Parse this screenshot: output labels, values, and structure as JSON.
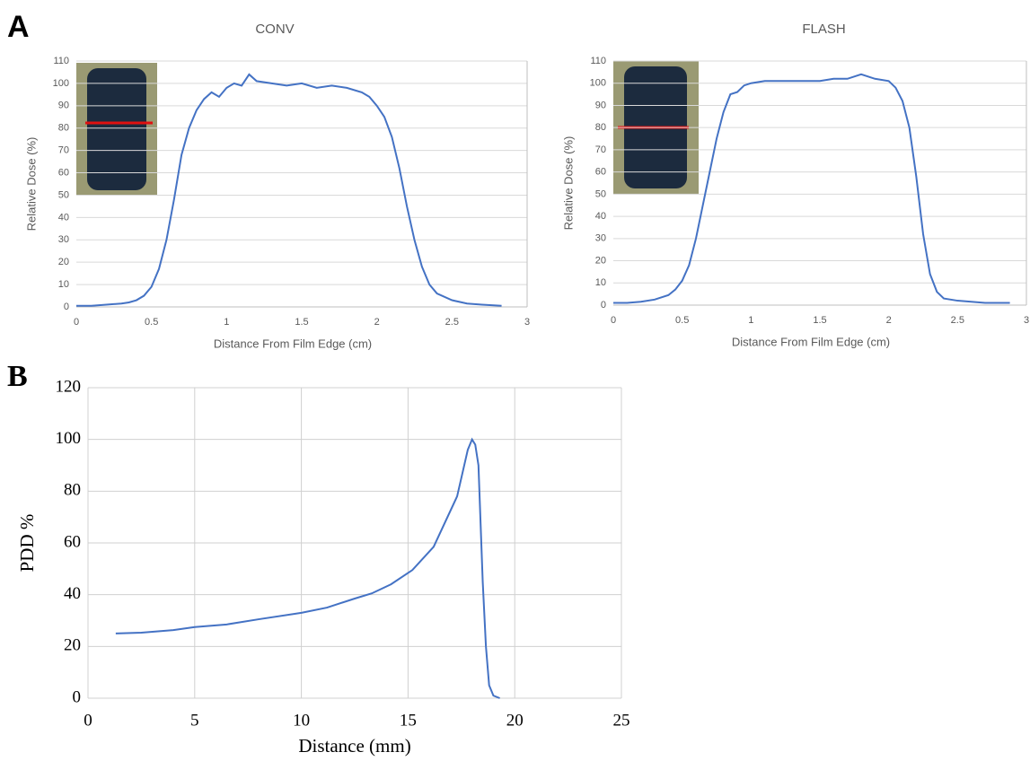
{
  "chart_data": [
    {
      "type": "line",
      "panel_label": "A",
      "title": "CONV",
      "x_label": "Distance From Film Edge (cm)",
      "y_label": "Relative Dose (%)",
      "x": [
        0,
        0.1,
        0.2,
        0.3,
        0.35,
        0.4,
        0.45,
        0.5,
        0.55,
        0.6,
        0.65,
        0.7,
        0.75,
        0.8,
        0.85,
        0.9,
        0.95,
        1.0,
        1.05,
        1.1,
        1.15,
        1.2,
        1.3,
        1.4,
        1.5,
        1.6,
        1.7,
        1.8,
        1.9,
        1.95,
        2.0,
        2.05,
        2.1,
        2.15,
        2.2,
        2.25,
        2.3,
        2.35,
        2.4,
        2.5,
        2.6,
        2.7,
        2.83
      ],
      "values": [
        0.5,
        0.5,
        1,
        1.5,
        2,
        3,
        5,
        9,
        17,
        30,
        48,
        68,
        80,
        88,
        93,
        96,
        94,
        98,
        100,
        99,
        104,
        101,
        100,
        99,
        100,
        98,
        99,
        98,
        96,
        94,
        90,
        85,
        76,
        62,
        45,
        30,
        18,
        10,
        6,
        3,
        1.5,
        1,
        0.5
      ],
      "color": "#4472c4",
      "xlim": [
        0,
        3
      ],
      "ylim": [
        0,
        110
      ],
      "xticks": [
        0,
        0.5,
        1,
        1.5,
        2,
        2.5,
        3
      ],
      "yticks": [
        0,
        10,
        20,
        30,
        40,
        50,
        60,
        70,
        80,
        90,
        100,
        110
      ],
      "grid": "horizontal"
    },
    {
      "type": "line",
      "title": "FLASH",
      "x_label": "Distance From Film Edge (cm)",
      "y_label": "Relative Dose (%)",
      "x": [
        0,
        0.1,
        0.2,
        0.3,
        0.4,
        0.45,
        0.5,
        0.55,
        0.6,
        0.65,
        0.7,
        0.75,
        0.8,
        0.85,
        0.9,
        0.95,
        1.0,
        1.1,
        1.2,
        1.3,
        1.4,
        1.5,
        1.6,
        1.7,
        1.8,
        1.9,
        2.0,
        2.05,
        2.1,
        2.15,
        2.2,
        2.25,
        2.3,
        2.35,
        2.4,
        2.5,
        2.6,
        2.7,
        2.88
      ],
      "values": [
        1,
        1,
        1.5,
        2.5,
        4.5,
        7,
        11,
        18,
        30,
        45,
        60,
        75,
        87,
        95,
        96,
        99,
        100,
        101,
        101,
        101,
        101,
        101,
        102,
        102,
        104,
        102,
        101,
        98,
        92,
        80,
        58,
        32,
        14,
        6,
        3,
        2,
        1.5,
        1,
        1
      ],
      "color": "#4472c4",
      "xlim": [
        0,
        3
      ],
      "ylim": [
        0,
        110
      ],
      "xticks": [
        0,
        0.5,
        1,
        1.5,
        2,
        2.5,
        3
      ],
      "yticks": [
        0,
        10,
        20,
        30,
        40,
        50,
        60,
        70,
        80,
        90,
        100,
        110
      ],
      "grid": "horizontal"
    },
    {
      "type": "line",
      "panel_label": "B",
      "x_label": "Distance (mm)",
      "y_label": "PDD %",
      "x": [
        1.3,
        2.5,
        4,
        5,
        6.5,
        8,
        10,
        11.2,
        12.5,
        13.3,
        14.2,
        15.2,
        16.2,
        17.3,
        17.8,
        18,
        18.15,
        18.3,
        18.5,
        18.65,
        18.8,
        19,
        19.3
      ],
      "values": [
        25,
        25.3,
        26.3,
        27.5,
        28.5,
        30.5,
        33,
        35,
        38.5,
        40.5,
        44,
        49.5,
        58.5,
        78,
        96,
        100,
        98,
        90,
        45,
        20,
        5,
        1,
        0
      ],
      "color": "#4472c4",
      "xlim": [
        0,
        25
      ],
      "ylim": [
        0,
        120
      ],
      "xticks": [
        0,
        5,
        10,
        15,
        20,
        25
      ],
      "yticks": [
        0,
        20,
        40,
        60,
        80,
        100,
        120
      ],
      "grid": "both"
    }
  ]
}
